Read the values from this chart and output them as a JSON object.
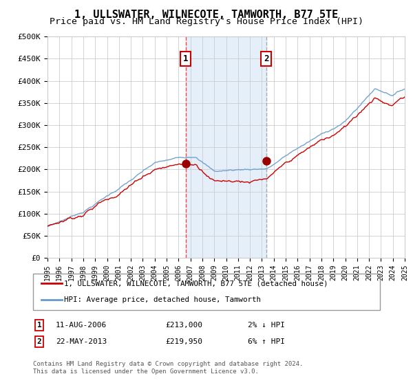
{
  "title": "1, ULLSWATER, WILNECOTE, TAMWORTH, B77 5TE",
  "subtitle": "Price paid vs. HM Land Registry's House Price Index (HPI)",
  "ylim": [
    0,
    500000
  ],
  "yticks": [
    0,
    50000,
    100000,
    150000,
    200000,
    250000,
    300000,
    350000,
    400000,
    450000,
    500000
  ],
  "ytick_labels": [
    "£0",
    "£50K",
    "£100K",
    "£150K",
    "£200K",
    "£250K",
    "£300K",
    "£350K",
    "£400K",
    "£450K",
    "£500K"
  ],
  "x_start_year": 1995,
  "x_end_year": 2025,
  "sale1_year": 2006.6,
  "sale1_value": 213000,
  "sale1_label": "1",
  "sale2_year": 2013.38,
  "sale2_value": 219950,
  "sale2_label": "2",
  "hpi_color": "#6699cc",
  "price_color": "#cc0000",
  "sale_marker_color": "#990000",
  "sale1_vline_color": "#ff4444",
  "sale2_vline_color": "#aaaaaa",
  "shade_color": "#cce0f5",
  "background_color": "#ffffff",
  "grid_color": "#cccccc",
  "legend_entry1": "1, ULLSWATER, WILNECOTE, TAMWORTH, B77 5TE (detached house)",
  "legend_entry2": "HPI: Average price, detached house, Tamworth",
  "annotation1": [
    "1",
    "11-AUG-2006",
    "£213,000",
    "2% ↓ HPI"
  ],
  "annotation2": [
    "2",
    "22-MAY-2013",
    "£219,950",
    "6% ↑ HPI"
  ],
  "footnote": "Contains HM Land Registry data © Crown copyright and database right 2024.\nThis data is licensed under the Open Government Licence v3.0.",
  "title_fontsize": 11,
  "subtitle_fontsize": 9.5
}
